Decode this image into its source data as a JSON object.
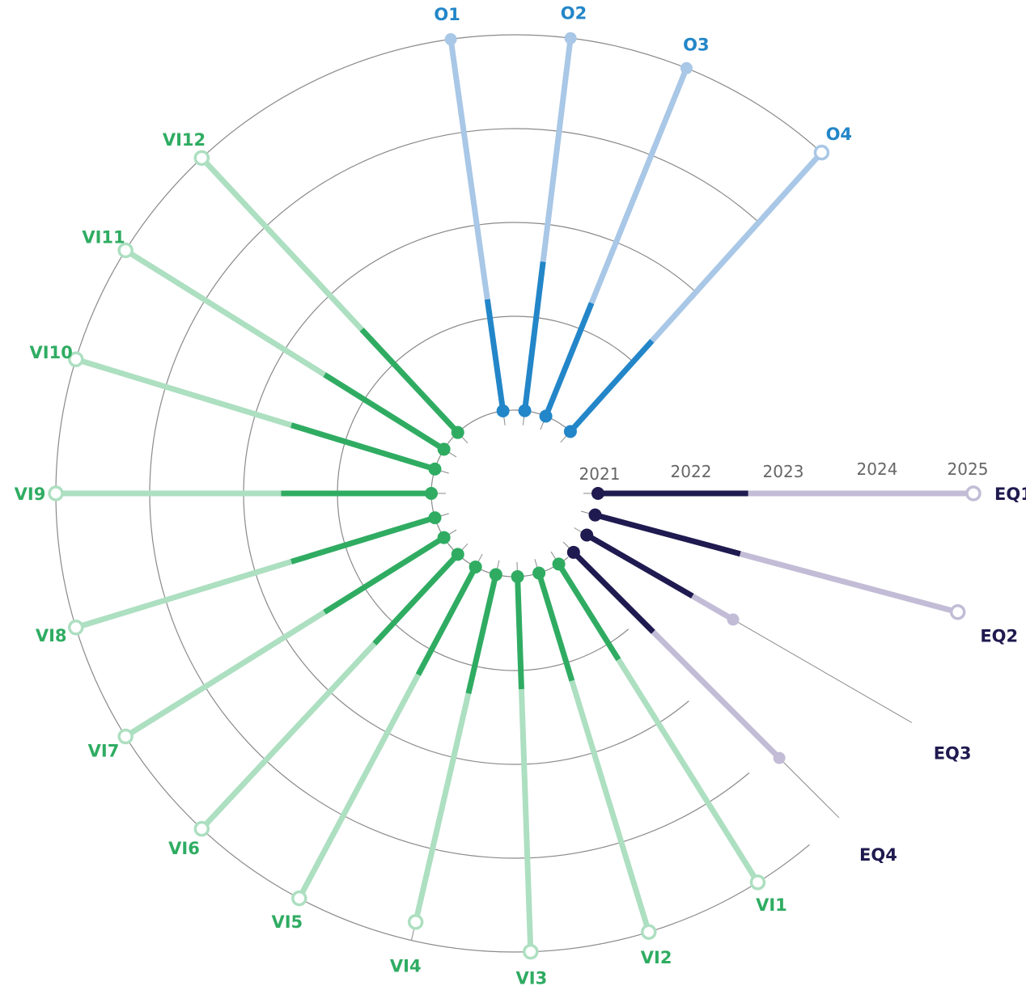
{
  "chart_data": {
    "type": "radial-timeline",
    "title": "",
    "year_labels": [
      "2021",
      "2022",
      "2023",
      "2024",
      "2025"
    ],
    "legend": "none",
    "grid": true,
    "groups": [
      {
        "id": "EQ",
        "colors": {
          "done": "#1f1a4f",
          "planned": "#c2bcd6",
          "label": "#1f1a4f"
        },
        "items": [
          {
            "name": "EQ1",
            "start": 2021,
            "progress": 2022.6,
            "end": 2025,
            "marker": "open"
          },
          {
            "name": "EQ2",
            "start": 2021,
            "progress": 2022.6,
            "end": 2025,
            "marker": "open"
          },
          {
            "name": "EQ3",
            "start": 2021,
            "progress": 2022.3,
            "end": 2022.8,
            "marker": "dot"
          },
          {
            "name": "EQ4",
            "start": 2021,
            "progress": 2022.2,
            "end": 2024.1,
            "marker": "dot"
          }
        ]
      },
      {
        "id": "VI",
        "colors": {
          "done": "#2fac62",
          "planned": "#addfc1",
          "label": "#2fac62"
        },
        "items": [
          {
            "name": "VI1",
            "start": 2021,
            "progress": 2022.2,
            "end": 2025,
            "marker": "open"
          },
          {
            "name": "VI2",
            "start": 2021,
            "progress": 2022.2,
            "end": 2025,
            "marker": "open"
          },
          {
            "name": "VI3",
            "start": 2021,
            "progress": 2022.2,
            "end": 2025,
            "marker": "open"
          },
          {
            "name": "VI4",
            "start": 2021,
            "progress": 2022.3,
            "end": 2024.8,
            "marker": "open"
          },
          {
            "name": "VI5",
            "start": 2021,
            "progress": 2022.3,
            "end": 2025,
            "marker": "open"
          },
          {
            "name": "VI6",
            "start": 2021,
            "progress": 2022.3,
            "end": 2025,
            "marker": "open"
          },
          {
            "name": "VI7",
            "start": 2021,
            "progress": 2022.5,
            "end": 2025,
            "marker": "open"
          },
          {
            "name": "VI8",
            "start": 2021,
            "progress": 2022.6,
            "end": 2025,
            "marker": "open"
          },
          {
            "name": "VI9",
            "start": 2021,
            "progress": 2022.6,
            "end": 2025,
            "marker": "open"
          },
          {
            "name": "VI10",
            "start": 2021,
            "progress": 2022.6,
            "end": 2025,
            "marker": "open"
          },
          {
            "name": "VI11",
            "start": 2021,
            "progress": 2022.5,
            "end": 2025,
            "marker": "open"
          },
          {
            "name": "VI12",
            "start": 2021,
            "progress": 2022.5,
            "end": 2025,
            "marker": "open"
          }
        ]
      },
      {
        "id": "O",
        "colors": {
          "done": "#2386c8",
          "planned": "#a9c7e6",
          "label": "#2386c8"
        },
        "items": [
          {
            "name": "O1",
            "start": 2021,
            "progress": 2022.2,
            "end": 2025,
            "marker": "dot"
          },
          {
            "name": "O2",
            "start": 2021,
            "progress": 2022.6,
            "end": 2025,
            "marker": "dot"
          },
          {
            "name": "O3",
            "start": 2021,
            "progress": 2022.3,
            "end": 2025,
            "marker": "dot"
          },
          {
            "name": "O4",
            "start": 2021,
            "progress": 2022.3,
            "end": 2025,
            "marker": "open"
          }
        ]
      }
    ]
  }
}
